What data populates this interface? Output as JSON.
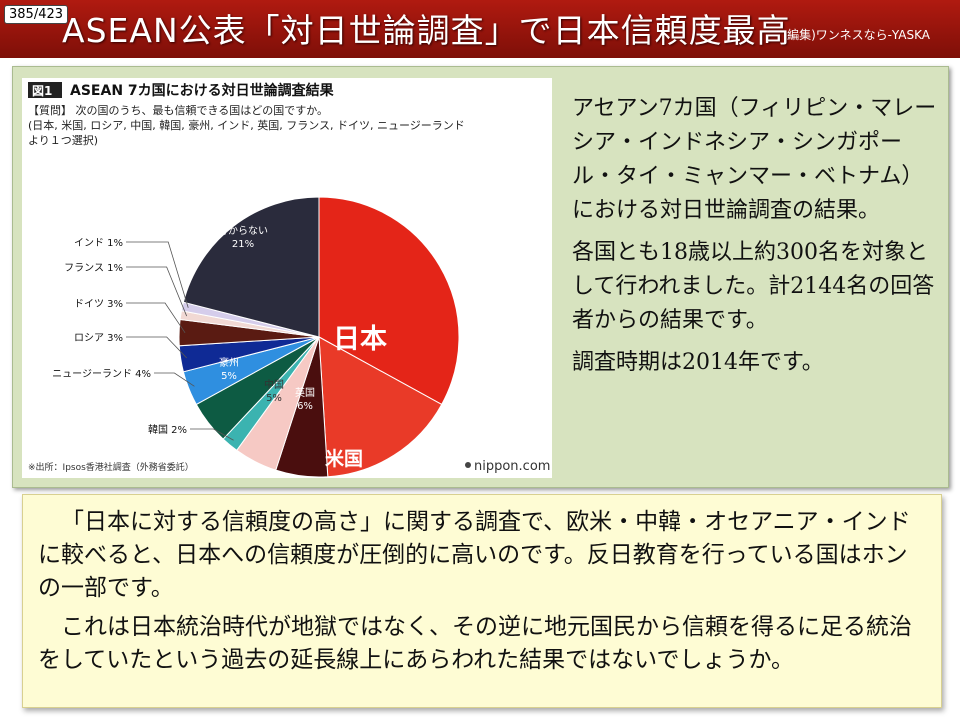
{
  "header": {
    "page_counter": "385/423",
    "title": "ASEAN公表「対日世論調査」で日本信頼度最高",
    "credit": "編集)ワンネスなら-YASKA"
  },
  "chart_data": {
    "type": "pie",
    "badge": "図1",
    "title": "ASEAN 7カ国における対日世論調査結果",
    "question": [
      "【質問】 次の国のうち、最も信頼できる国はどの国ですか。",
      "(日本, 米国, ロシア, 中国, 韓国, 豪州, インド, 英国, フランス, ドイツ, ニュージーランド",
      "より１つ選択)"
    ],
    "slices": [
      {
        "name": "日本",
        "value": 33,
        "color": "#e42518",
        "label": "日本"
      },
      {
        "name": "米国",
        "value": 16,
        "color": "#e93a28",
        "label": "米国"
      },
      {
        "name": "英国",
        "value": 6,
        "color": "#4a0e0e",
        "label": "英国 6%"
      },
      {
        "name": "中国",
        "value": 5,
        "color": "#f6c9c4",
        "label": "中国 5%"
      },
      {
        "name": "韓国",
        "value": 2,
        "color": "#3bb3b0",
        "label": "韓国 2%"
      },
      {
        "name": "豪州",
        "value": 5,
        "color": "#0d5b43",
        "label": "豪州 5%"
      },
      {
        "name": "ニュージーランド",
        "value": 4,
        "color": "#2f8fe0",
        "label": "ニュージーランド 4%"
      },
      {
        "name": "ロシア",
        "value": 3,
        "color": "#0f2a95",
        "label": "ロシア 3%"
      },
      {
        "name": "ドイツ",
        "value": 3,
        "color": "#5a1b12",
        "label": "ドイツ 3%"
      },
      {
        "name": "フランス",
        "value": 1,
        "color": "#f1d9d4",
        "label": "フランス 1%"
      },
      {
        "name": "インド",
        "value": 1,
        "color": "#d5cdeb",
        "label": "インド 1%"
      },
      {
        "name": "分からない",
        "value": 21,
        "color": "#2a2b3c",
        "label": "分からない 21%"
      }
    ],
    "source": "※出所：Ipsos香港社調査（外務省委託）",
    "brand": "nippon.com"
  },
  "right_text": [
    "アセアン7カ国（フィリピン・マレーシア・インドネシア・シンガポール・タイ・ミャンマー・ベトナム）における対日世論調査の結果。",
    "各国とも18歳以上約300名を対象として行われました。計2144名の回答者からの結果です。",
    "調査時期は2014年です。"
  ],
  "bottom_text": [
    "「日本に対する信頼度の高さ」に関する調査で、欧米・中韓・オセアニア・インドに較べると、日本への信頼度が圧倒的に高いのです。反日教育を行っている国はホンの一部です。",
    "これは日本統治時代が地獄ではなく、その逆に地元国民から信頼を得るに足る統治をしていたという過去の延長線上にあらわれた結果ではないでしょうか。"
  ]
}
